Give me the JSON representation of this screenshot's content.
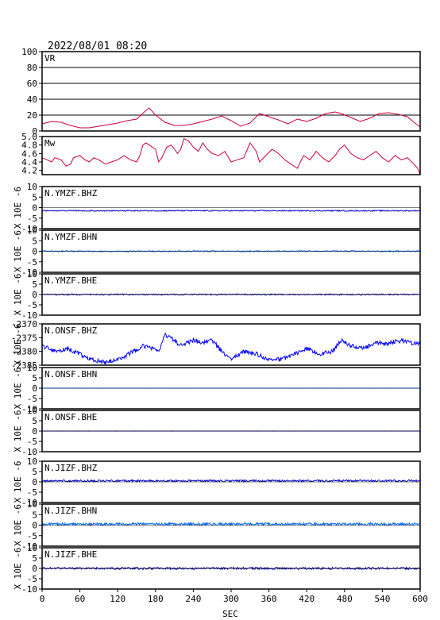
{
  "header": {
    "datetime": "2022/08/01 08:20"
  },
  "x_axis": {
    "label": "SEC",
    "range": [
      0,
      600
    ],
    "ticks": [
      0,
      60,
      120,
      180,
      240,
      300,
      360,
      420,
      480,
      540,
      600
    ]
  },
  "units_label": "X 10E -6",
  "chart_data": [
    {
      "type": "line",
      "panel": "VR",
      "label": "VR",
      "color": "#cc0033",
      "ylim": [
        0,
        100
      ],
      "yticks": [
        "0",
        "20",
        "40",
        "60",
        "80",
        "100"
      ],
      "gridlines": [
        20,
        40,
        60,
        80
      ],
      "x": [
        0,
        15,
        30,
        45,
        60,
        75,
        90,
        105,
        120,
        135,
        150,
        165,
        170,
        180,
        195,
        210,
        225,
        240,
        255,
        270,
        285,
        300,
        315,
        330,
        345,
        360,
        375,
        390,
        405,
        420,
        435,
        450,
        465,
        475,
        490,
        505,
        520,
        535,
        550,
        565,
        580,
        590,
        600
      ],
      "values": [
        9,
        12,
        11,
        7,
        4,
        4,
        6,
        8,
        10,
        13,
        15,
        26,
        29,
        20,
        11,
        7,
        7,
        9,
        12,
        15,
        19,
        13,
        6,
        10,
        22,
        18,
        14,
        9,
        15,
        12,
        16,
        22,
        24,
        22,
        17,
        12,
        16,
        22,
        23,
        21,
        18,
        11,
        5
      ]
    },
    {
      "type": "line",
      "panel": "Mw",
      "label": "Mw",
      "color": "#cc0033",
      "ylim": [
        4.1,
        5.0
      ],
      "yticks": [
        "4.2",
        "4.4",
        "4.6",
        "4.8",
        "5.0"
      ],
      "x": [
        0,
        8,
        15,
        20,
        30,
        38,
        45,
        50,
        60,
        68,
        75,
        82,
        90,
        100,
        110,
        120,
        130,
        140,
        150,
        155,
        160,
        165,
        170,
        180,
        185,
        190,
        198,
        205,
        215,
        220,
        225,
        232,
        240,
        248,
        255,
        262,
        270,
        280,
        290,
        300,
        310,
        320,
        330,
        340,
        345,
        355,
        365,
        375,
        385,
        395,
        405,
        415,
        425,
        435,
        445,
        455,
        465,
        472,
        480,
        490,
        500,
        510,
        520,
        530,
        540,
        550,
        560,
        570,
        580,
        590,
        596,
        600
      ],
      "values": [
        4.5,
        4.45,
        4.4,
        4.5,
        4.45,
        4.3,
        4.35,
        4.5,
        4.55,
        4.45,
        4.4,
        4.5,
        4.45,
        4.35,
        4.4,
        4.45,
        4.55,
        4.45,
        4.4,
        4.55,
        4.8,
        4.85,
        4.8,
        4.7,
        4.4,
        4.5,
        4.75,
        4.8,
        4.6,
        4.7,
        4.95,
        4.9,
        4.75,
        4.65,
        4.85,
        4.7,
        4.6,
        4.55,
        4.65,
        4.4,
        4.45,
        4.5,
        4.85,
        4.65,
        4.4,
        4.55,
        4.7,
        4.6,
        4.45,
        4.35,
        4.25,
        4.55,
        4.45,
        4.65,
        4.5,
        4.4,
        4.55,
        4.7,
        4.8,
        4.6,
        4.5,
        4.45,
        4.55,
        4.65,
        4.5,
        4.4,
        4.55,
        4.45,
        4.5,
        4.35,
        4.25,
        4.1
      ]
    },
    {
      "type": "line",
      "panel": "trace",
      "label": "N.YMZF.BHZ",
      "color": "#0000cc",
      "ylim": [
        -10,
        10
      ],
      "yticks": [
        "-10",
        "-5",
        "0",
        "5",
        "10"
      ],
      "baseline": -1.5,
      "noise": 0.25
    },
    {
      "type": "line",
      "panel": "trace",
      "label": "N.YMZF.BHN",
      "color": "#0066ff",
      "ylim": [
        -10,
        10
      ],
      "yticks": [
        "-10",
        "-5",
        "0",
        "5",
        "10"
      ],
      "baseline": 0,
      "noise": 0.3
    },
    {
      "type": "line",
      "panel": "trace",
      "label": "N.YMZF.BHE",
      "color": "#000099",
      "ylim": [
        -10,
        10
      ],
      "yticks": [
        "-10",
        "-5",
        "0",
        "5",
        "10"
      ],
      "baseline": 0,
      "noise": 0.3
    },
    {
      "type": "line",
      "panel": "trace",
      "label": "N.ONSF.BHZ",
      "color": "#0000ff",
      "ylim": [
        -2385,
        -2370
      ],
      "yticks": [
        "-2385",
        "-2380",
        "-2375",
        "-2370"
      ],
      "x": [
        0,
        20,
        40,
        60,
        80,
        100,
        115,
        130,
        145,
        160,
        175,
        185,
        195,
        205,
        220,
        240,
        255,
        270,
        285,
        300,
        320,
        340,
        360,
        380,
        400,
        420,
        440,
        460,
        475,
        490,
        510,
        530,
        550,
        570,
        590,
        600
      ],
      "values": [
        -2378,
        -2380,
        -2379,
        -2381,
        -2383,
        -2384,
        -2383,
        -2382,
        -2380,
        -2378,
        -2379,
        -2380,
        -2374,
        -2375,
        -2378,
        -2376,
        -2377,
        -2376,
        -2380,
        -2383,
        -2380,
        -2381,
        -2383,
        -2383,
        -2381,
        -2379,
        -2381,
        -2380,
        -2376,
        -2378,
        -2379,
        -2377,
        -2377,
        -2376,
        -2377,
        -2377
      ],
      "noise": 0.8
    },
    {
      "type": "line",
      "panel": "trace",
      "label": "N.ONSF.BHN",
      "color": "#0066ff",
      "ylim": [
        -10,
        10
      ],
      "yticks": [
        "-10",
        "-5",
        "0",
        "5",
        "10"
      ],
      "baseline": 0,
      "noise": 0.02
    },
    {
      "type": "line",
      "panel": "trace",
      "label": "N.ONSF.BHE",
      "color": "#000099",
      "ylim": [
        -10,
        10
      ],
      "yticks": [
        "-10",
        "-5",
        "0",
        "5",
        "10"
      ],
      "baseline": 0,
      "noise": 0.02
    },
    {
      "type": "line",
      "panel": "trace",
      "label": "N.JIZF.BHZ",
      "color": "#0000cc",
      "ylim": [
        -10,
        10
      ],
      "yticks": [
        "-10",
        "-5",
        "0",
        "5",
        "10"
      ],
      "baseline": 0.5,
      "noise": 0.5
    },
    {
      "type": "line",
      "panel": "trace",
      "label": "N.JIZF.BHN",
      "color": "#0066ff",
      "ylim": [
        -10,
        10
      ],
      "yticks": [
        "-10",
        "-5",
        "0",
        "5",
        "10"
      ],
      "baseline": 0.5,
      "noise": 0.6
    },
    {
      "type": "line",
      "panel": "trace",
      "label": "N.JIZF.BHE",
      "color": "#000099",
      "ylim": [
        -10,
        10
      ],
      "yticks": [
        "-10",
        "-5",
        "0",
        "5",
        "10"
      ],
      "baseline": 0,
      "noise": 0.5
    }
  ]
}
